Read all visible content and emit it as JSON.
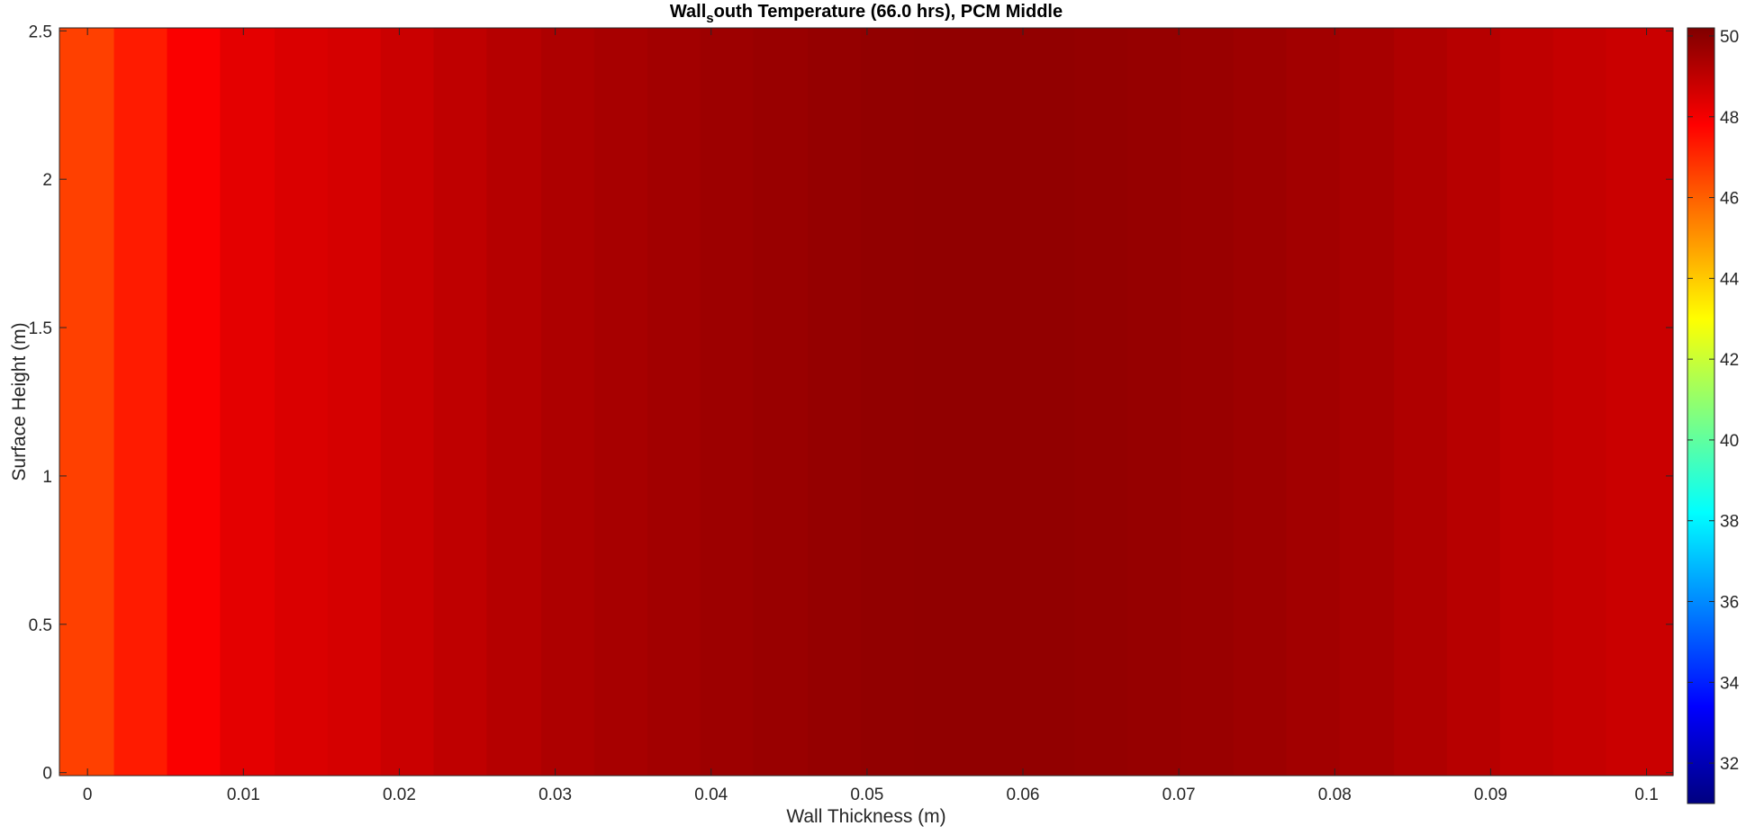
{
  "chart_data": {
    "type": "heatmap",
    "title": "Wall",
    "title_subscript": "s",
    "title_rest": "outh  Temperature  (66.0  hrs),  PCM  Middle",
    "xlabel": "Wall Thickness (m)",
    "ylabel": "Surface Height (m)",
    "xlim": [
      -0.0018,
      0.1017
    ],
    "ylim": [
      -0.01,
      2.51
    ],
    "x_ticks": [
      "0",
      "0.01",
      "0.02",
      "0.03",
      "0.04",
      "0.05",
      "0.06",
      "0.07",
      "0.08",
      "0.09",
      "0.1"
    ],
    "x_tick_values": [
      0,
      0.01,
      0.02,
      0.03,
      0.04,
      0.05,
      0.06,
      0.07,
      0.08,
      0.09,
      0.1
    ],
    "y_ticks": [
      "0",
      "0.5",
      "1",
      "1.5",
      "2",
      "2.5"
    ],
    "y_tick_values": [
      0,
      0.5,
      1,
      1.5,
      2,
      2.5
    ],
    "colormap": "jet",
    "clim": [
      31.0,
      50.2
    ],
    "colorbar_ticks": [
      "32",
      "34",
      "36",
      "38",
      "40",
      "42",
      "44",
      "46",
      "48",
      "50"
    ],
    "colorbar_tick_values": [
      32,
      34,
      36,
      38,
      40,
      42,
      44,
      46,
      48,
      50
    ],
    "grid": false,
    "x_bin_edges": [
      -0.0018,
      0.0017,
      0.0051,
      0.0085,
      0.012,
      0.0154,
      0.0188,
      0.0222,
      0.0256,
      0.0291,
      0.0325,
      0.0359,
      0.0393,
      0.0427,
      0.0462,
      0.0496,
      0.053,
      0.0564,
      0.0598,
      0.0633,
      0.0667,
      0.0701,
      0.0735,
      0.0769,
      0.0803,
      0.0838,
      0.0872,
      0.0906,
      0.094,
      0.0974,
      0.1017
    ],
    "temperatures_by_column": [
      46.6,
      47.3,
      47.9,
      48.3,
      48.5,
      48.6,
      48.8,
      49.0,
      49.2,
      49.35,
      49.45,
      49.55,
      49.65,
      49.72,
      49.8,
      49.85,
      49.88,
      49.88,
      49.85,
      49.82,
      49.78,
      49.72,
      49.65,
      49.55,
      49.45,
      49.3,
      49.15,
      49.0,
      48.9,
      48.8
    ]
  }
}
